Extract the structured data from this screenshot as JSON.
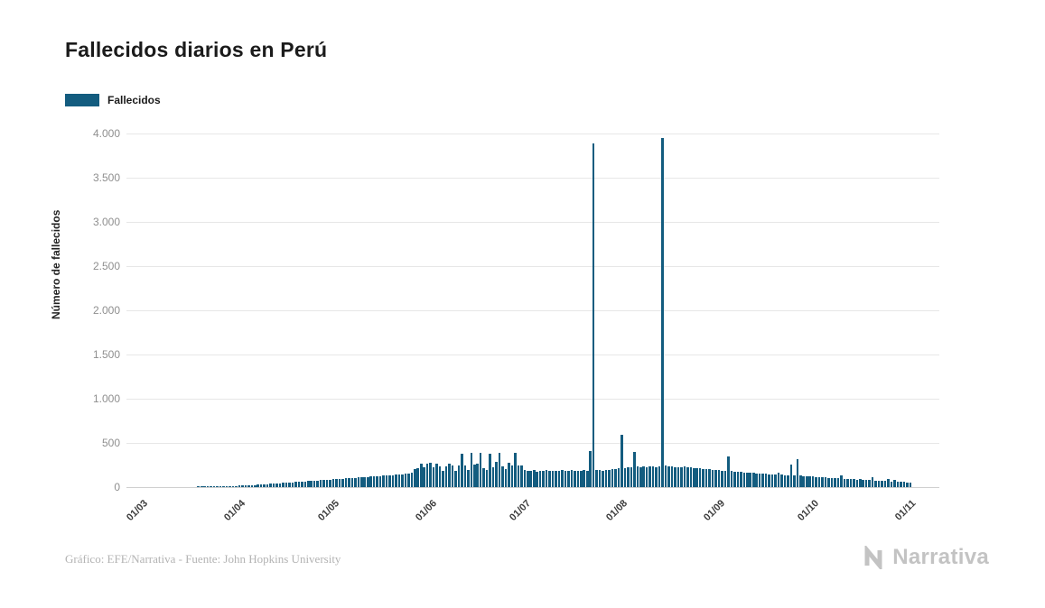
{
  "page": {
    "title": "Fallecidos diarios en Perú"
  },
  "legend": {
    "label": "Fallecidos",
    "color": "#135c7f"
  },
  "footer": {
    "credit": "Gráfico: EFE/Narrativa - Fuente: John Hopkins University",
    "brand": "Narrativa"
  },
  "chart_data": {
    "type": "bar",
    "title": "Fallecidos diarios en Perú",
    "series_name": "Fallecidos",
    "xlabel": "",
    "ylabel": "Número de fallecidos",
    "ylim": [
      0,
      4000
    ],
    "grid": true,
    "legend_position": "top-left",
    "bar_color": "#135c7f",
    "y_tick_values": [
      0,
      500,
      1000,
      1500,
      2000,
      2500,
      3000,
      3500,
      4000
    ],
    "y_tick_labels": [
      "0",
      "500",
      "1.000",
      "1.500",
      "2.000",
      "2.500",
      "3.000",
      "3.500",
      "4.000"
    ],
    "x_ticks": [
      {
        "label": "01/03",
        "index": 0
      },
      {
        "label": "01/04",
        "index": 31
      },
      {
        "label": "01/05",
        "index": 61
      },
      {
        "label": "01/06",
        "index": 92
      },
      {
        "label": "01/07",
        "index": 122
      },
      {
        "label": "01/08",
        "index": 153
      },
      {
        "label": "01/09",
        "index": 184
      },
      {
        "label": "01/10",
        "index": 214
      },
      {
        "label": "01/11",
        "index": 245
      }
    ],
    "notable_points": [
      {
        "date": "23/07",
        "value": 3890
      },
      {
        "date": "14/08",
        "value": 3950
      }
    ],
    "values": [
      0,
      0,
      0,
      0,
      0,
      0,
      0,
      0,
      0,
      0,
      0,
      0,
      0,
      0,
      0,
      0,
      0,
      0,
      2,
      3,
      3,
      4,
      5,
      6,
      8,
      9,
      10,
      11,
      12,
      13,
      15,
      16,
      18,
      20,
      22,
      24,
      25,
      27,
      30,
      32,
      35,
      37,
      40,
      42,
      45,
      47,
      50,
      52,
      55,
      57,
      60,
      62,
      65,
      67,
      70,
      72,
      75,
      78,
      80,
      83,
      85,
      88,
      90,
      93,
      95,
      98,
      100,
      103,
      105,
      108,
      110,
      112,
      115,
      118,
      120,
      123,
      125,
      128,
      130,
      133,
      135,
      138,
      140,
      145,
      150,
      155,
      160,
      200,
      210,
      265,
      220,
      268,
      272,
      225,
      265,
      230,
      180,
      235,
      270,
      240,
      185,
      245,
      380,
      250,
      190,
      385,
      255,
      270,
      390,
      215,
      195,
      380,
      225,
      285,
      390,
      230,
      200,
      280,
      240,
      385,
      245,
      250,
      195,
      180,
      185,
      190,
      178,
      182,
      186,
      192,
      184,
      188,
      180,
      186,
      190,
      183,
      187,
      191,
      185,
      180,
      188,
      192,
      186,
      410,
      3890,
      195,
      190,
      188,
      192,
      196,
      200,
      205,
      210,
      590,
      215,
      220,
      225,
      400,
      230,
      228,
      232,
      226,
      230,
      235,
      228,
      232,
      3950,
      240,
      235,
      230,
      228,
      225,
      222,
      230,
      226,
      222,
      218,
      215,
      210,
      208,
      205,
      200,
      198,
      195,
      192,
      188,
      185,
      350,
      180,
      175,
      172,
      170,
      168,
      165,
      162,
      160,
      158,
      155,
      152,
      150,
      148,
      145,
      142,
      160,
      138,
      135,
      132,
      255,
      130,
      320,
      128,
      125,
      122,
      120,
      118,
      115,
      112,
      110,
      108,
      105,
      102,
      100,
      98,
      130,
      95,
      92,
      90,
      88,
      85,
      95,
      82,
      80,
      78,
      110,
      75,
      72,
      70,
      68,
      90,
      65,
      80,
      62,
      60,
      58,
      56,
      55
    ]
  }
}
